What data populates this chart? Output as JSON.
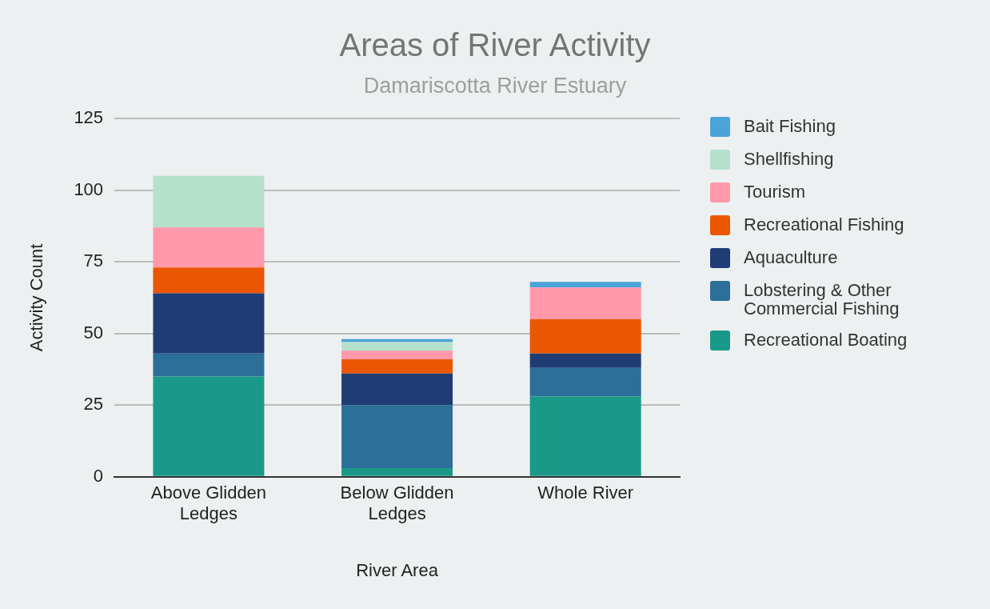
{
  "chart_data": {
    "type": "bar",
    "title": "Areas of River Activity",
    "subtitle": "Damariscotta River Estuary",
    "xlabel": "River Area",
    "ylabel": "Activity Count",
    "categories": [
      "Above Glidden Ledges",
      "Below Glidden Ledges",
      "Whole River"
    ],
    "stacked": true,
    "series": [
      {
        "name": "Recreational Boating",
        "color": "#1a9988",
        "values": [
          35,
          3,
          28
        ]
      },
      {
        "name": "Lobstering & Other Commercial Fishing",
        "color": "#2c6f99",
        "values": [
          8,
          22,
          10
        ]
      },
      {
        "name": "Aquaculture",
        "color": "#1f3d74",
        "values": [
          21,
          11,
          5
        ]
      },
      {
        "name": "Recreational Fishing",
        "color": "#eb5600",
        "values": [
          9,
          5,
          12
        ]
      },
      {
        "name": "Tourism",
        "color": "#ff99aa",
        "values": [
          14,
          3,
          11
        ]
      },
      {
        "name": "Shellfishing",
        "color": "#b5e0cc",
        "values": [
          18,
          3,
          0
        ]
      },
      {
        "name": "Bait Fishing",
        "color": "#4aa3d9",
        "values": [
          0,
          1,
          2
        ]
      }
    ],
    "ylim": [
      0,
      125
    ],
    "yticks": [
      0,
      25,
      50,
      75,
      100,
      125
    ],
    "grid": "y",
    "legend": "right"
  }
}
